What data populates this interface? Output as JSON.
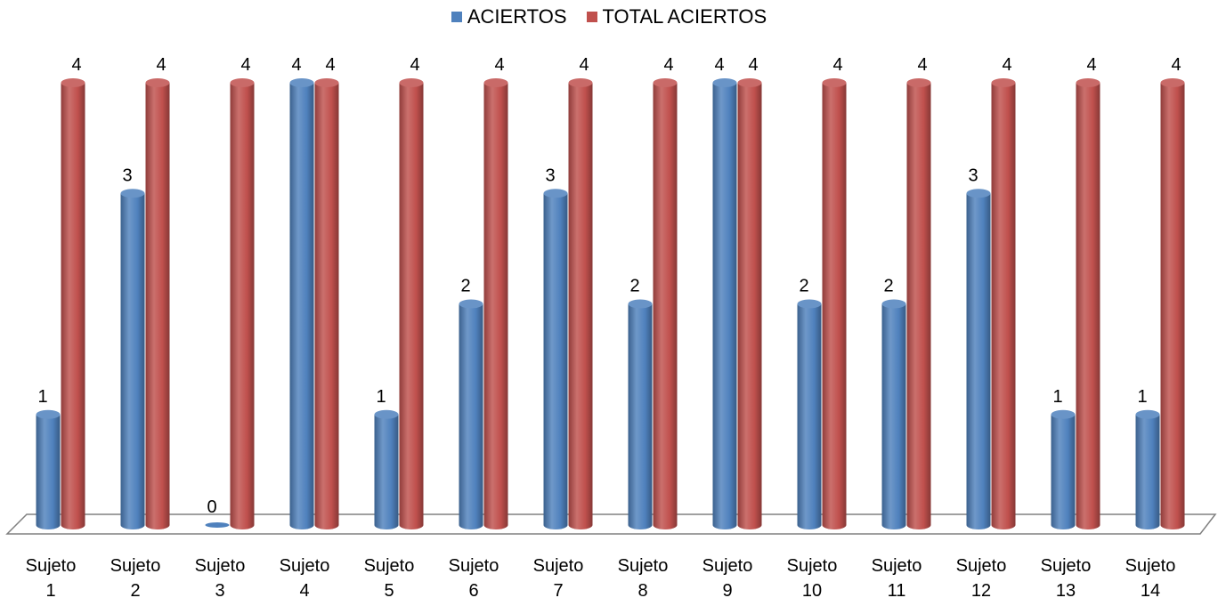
{
  "chart_data": {
    "type": "bar",
    "categories": [
      [
        "Sujeto",
        "1"
      ],
      [
        "Sujeto",
        "2"
      ],
      [
        "Sujeto",
        "3"
      ],
      [
        "Sujeto",
        "4"
      ],
      [
        "Sujeto",
        "5"
      ],
      [
        "Sujeto",
        "6"
      ],
      [
        "Sujeto",
        "7"
      ],
      [
        "Sujeto",
        "8"
      ],
      [
        "Sujeto",
        "9"
      ],
      [
        "Sujeto",
        "10"
      ],
      [
        "Sujeto",
        "11"
      ],
      [
        "Sujeto",
        "12"
      ],
      [
        "Sujeto",
        "13"
      ],
      [
        "Sujeto",
        "14"
      ]
    ],
    "series": [
      {
        "name": "ACIERTOS",
        "color": "#4f81bd",
        "values": [
          1,
          3,
          0,
          4,
          1,
          2,
          3,
          2,
          4,
          2,
          2,
          3,
          1,
          1
        ]
      },
      {
        "name": "TOTAL ACIERTOS",
        "color": "#c0504d",
        "values": [
          4,
          4,
          4,
          4,
          4,
          4,
          4,
          4,
          4,
          4,
          4,
          4,
          4,
          4
        ]
      }
    ],
    "ylim": [
      0,
      4
    ],
    "grid": false,
    "legend_position": "top",
    "style": "3d-cylinder"
  }
}
